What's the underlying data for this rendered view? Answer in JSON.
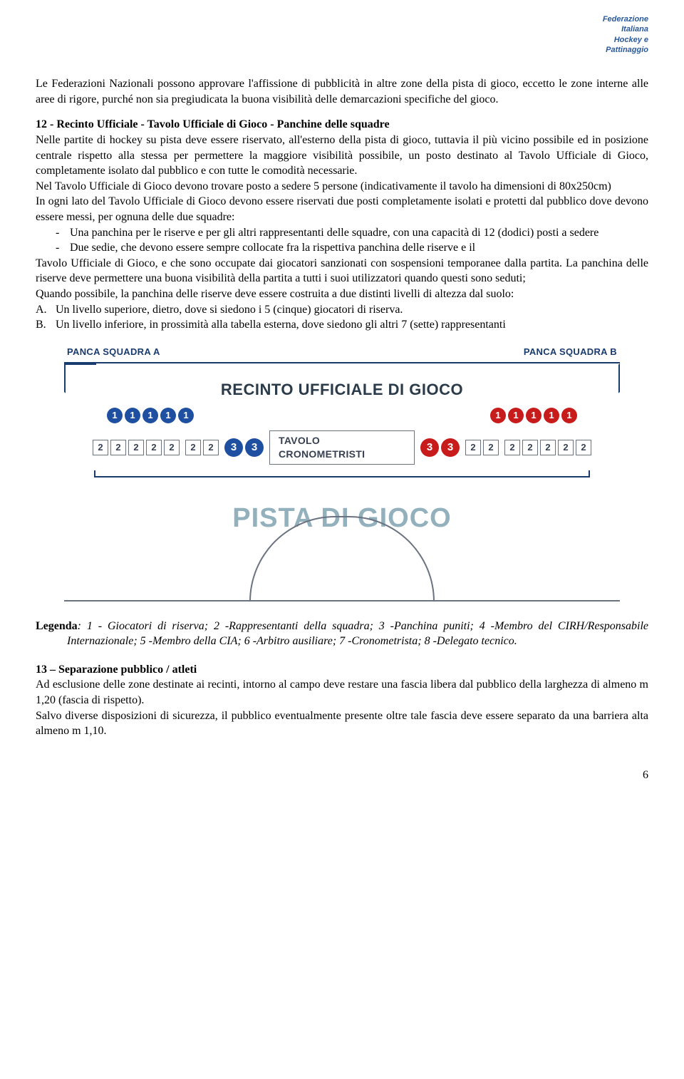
{
  "header": {
    "line1": "Federazione",
    "line2": "Italiana",
    "line3": "Hockey e",
    "line4": "Pattinaggio"
  },
  "p1": "Le Federazioni Nazionali possono approvare l'affissione di pubblicità in altre zone della pista di gioco, eccetto le zone interne alle aree di rigore, purché non sia pregiudicata la buona visibilità delle demarcazioni specifiche del gioco.",
  "s12_title": "12 - Recinto Ufficiale - Tavolo Ufficiale di Gioco - Panchine delle squadre",
  "s12_p1": "Nelle partite di hockey su pista deve essere riservato, all'esterno della pista di gioco, tuttavia il più vicino possibile ed in posizione centrale rispetto alla stessa per permettere la maggiore visibilità possibile, un posto destinato al Tavolo Ufficiale di Gioco, completamente isolato dal pubblico e con tutte le comodità necessarie.",
  "s12_p2": "Nel Tavolo Ufficiale di Gioco devono trovare posto a sedere 5 persone (indicativamente il tavolo ha dimensioni di 80x250cm)",
  "s12_p3": "In ogni lato del Tavolo Ufficiale di Gioco devono essere riservati due posti completamente isolati e protetti dal pubblico dove devono essere messi, per ognuna delle due squadre:",
  "s12_li1": "Una panchina per le riserve e per gli altri rappresentanti delle squadre, con una capacità di 12 (dodici) posti a sedere",
  "s12_li2": "Due sedie, che devono essere sempre collocate fra la rispettiva panchina delle riserve e il",
  "s12_p4": "Tavolo Ufficiale di Gioco, e che sono occupate dai giocatori sanzionati con sospensioni temporanee dalla partita. La panchina delle riserve deve permettere una buona visibilità della partita a tutti i suoi utilizzatori quando questi sono seduti;",
  "s12_p5": "Quando possibile, la panchina delle riserve deve essere costruita a due distinti livelli di altezza dal suolo:",
  "s12_liA": "Un livello superiore, dietro, dove si siedono i 5 (cinque) giocatori di riserva.",
  "s12_liB": "Un livello inferiore, in prossimità alla tabella esterna, dove siedono gli altri 7 (sette) rappresentanti",
  "diagram": {
    "panca_a": "PANCA SQUADRA  A",
    "panca_b": "PANCA SQUADRA  B",
    "title": "RECINTO UFFICIALE DI GIOCO",
    "tav": "TAVOLO CRONOMETRISTI",
    "pista": "PISTA DI GIOCO",
    "n1": "1",
    "n2": "2",
    "n3": "3",
    "colors": {
      "blue": "#1f4fa0",
      "red": "#c81b1b",
      "grey": "#6b7280",
      "navy": "#1a3b6e",
      "pista": "#93b0bd"
    }
  },
  "legenda_label": "Legenda",
  "legenda_body": ": 1 - Giocatori di riserva; 2 -Rappresentanti della squadra; 3 -Panchina puniti; 4 -Membro del CIRH/Responsabile Internazionale; 5 -Membro della CIA; 6 -Arbitro ausiliare; 7 -Cronometrista; 8 -Delegato tecnico.",
  "s13_title": "13 – Separazione pubblico / atleti",
  "s13_p1": "Ad esclusione delle zone destinate ai recinti, intorno al campo deve restare una fascia libera dal pubblico della larghezza di almeno m 1,20 (fascia di rispetto).",
  "s13_p2": "Salvo diverse disposizioni di sicurezza, il pubblico eventualmente presente oltre tale fascia deve essere separato da una barriera alta almeno m 1,10.",
  "page_number": "6"
}
